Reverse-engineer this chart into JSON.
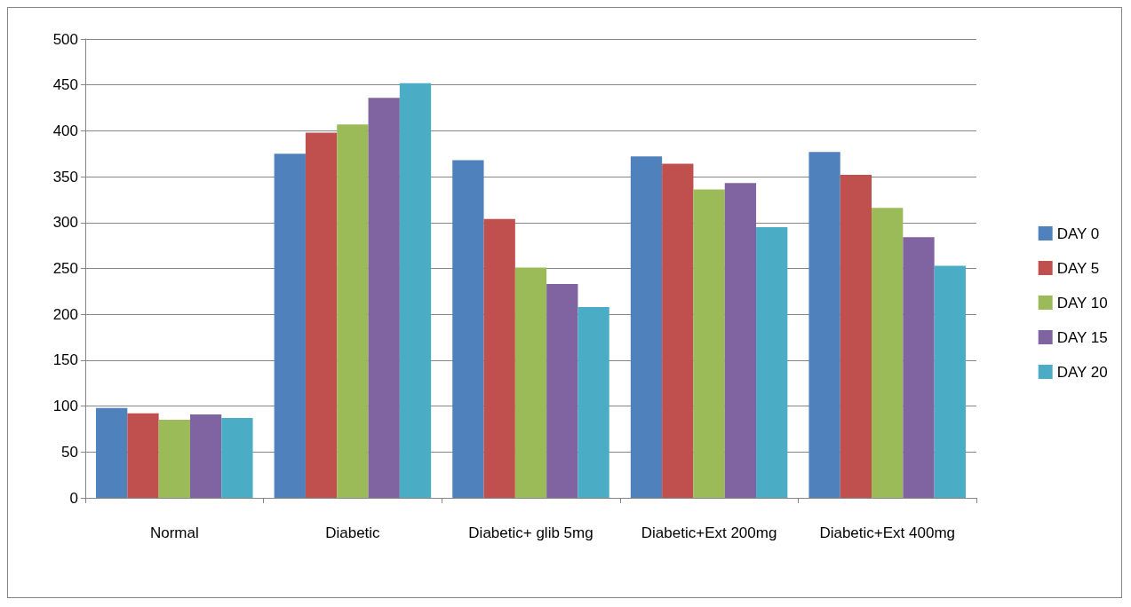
{
  "chart_data": {
    "type": "bar",
    "categories": [
      "Normal",
      "Diabetic",
      "Diabetic+ glib 5mg",
      "Diabetic+Ext 200mg",
      "Diabetic+Ext 400mg"
    ],
    "series": [
      {
        "name": "DAY 0",
        "color": "#4f81bd",
        "values": [
          98,
          375,
          368,
          372,
          377
        ]
      },
      {
        "name": "DAY 5",
        "color": "#c0504d",
        "values": [
          92,
          398,
          304,
          364,
          352
        ]
      },
      {
        "name": "DAY 10",
        "color": "#9bbb59",
        "values": [
          85,
          407,
          251,
          336,
          316
        ]
      },
      {
        "name": "DAY 15",
        "color": "#8064a2",
        "values": [
          91,
          436,
          233,
          343,
          284
        ]
      },
      {
        "name": "DAY 20",
        "color": "#4bacc6",
        "values": [
          87,
          452,
          208,
          295,
          253
        ]
      }
    ],
    "ylim": [
      0,
      500
    ],
    "yticks": [
      0,
      50,
      100,
      150,
      200,
      250,
      300,
      350,
      400,
      450,
      500
    ],
    "grid": "y",
    "legend": "right"
  }
}
